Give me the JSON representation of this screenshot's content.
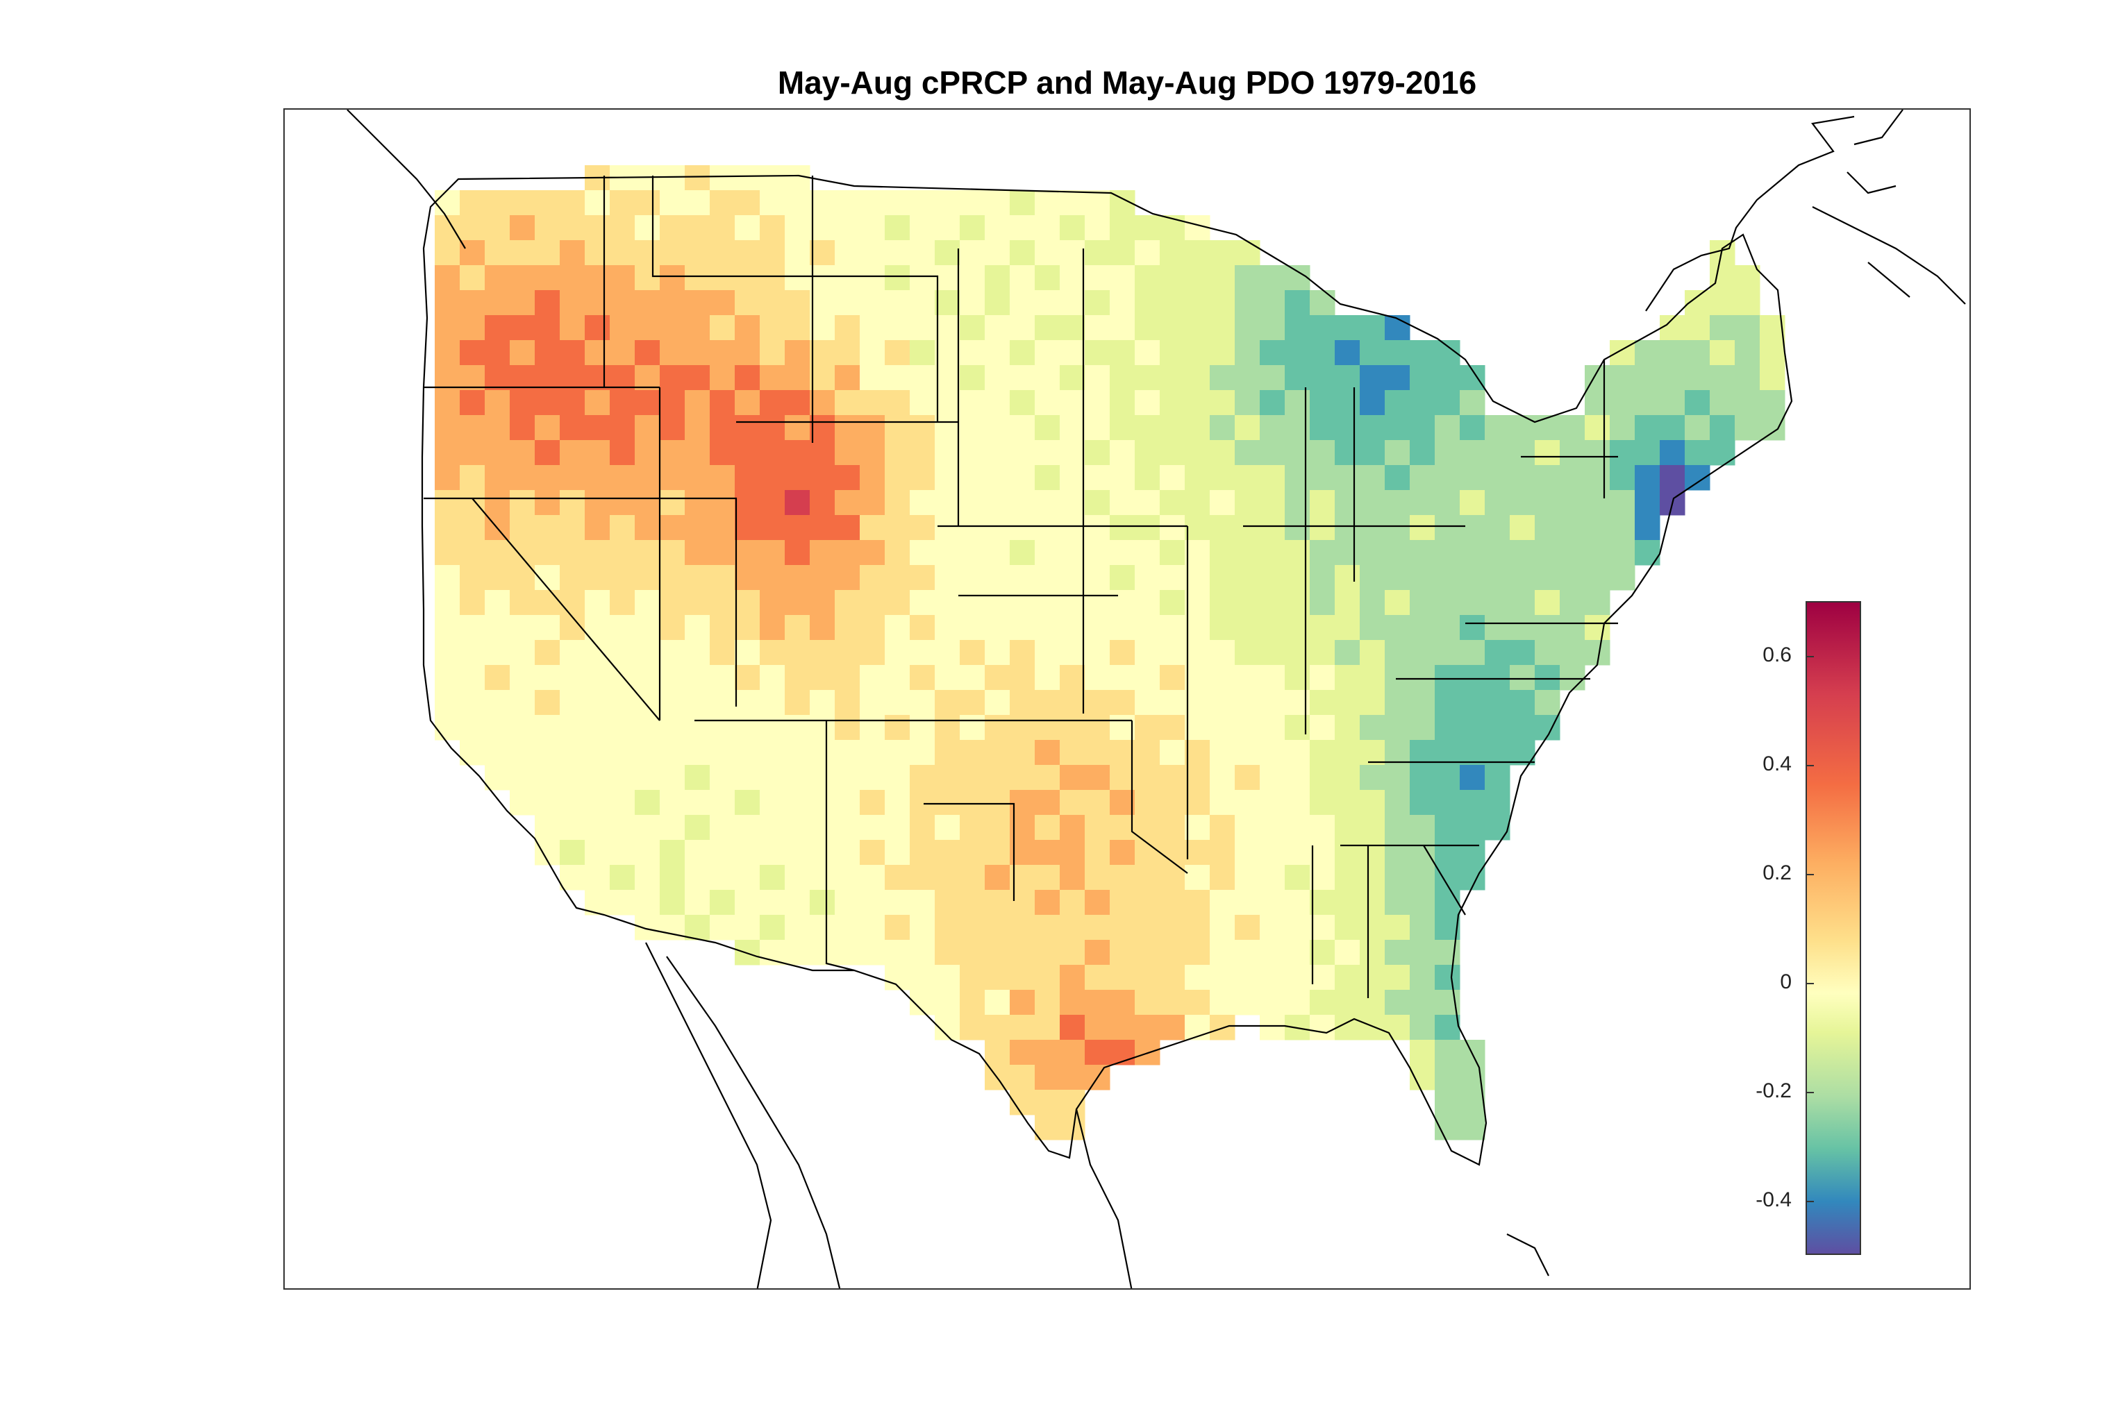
{
  "title": "May-Aug cPRCP and May-Aug PDO 1979-2016",
  "colorbar": {
    "ticks": [
      "0.6",
      "0.4",
      "0.2",
      "0",
      "-0.2",
      "-0.4"
    ],
    "tick_values": [
      0.6,
      0.4,
      0.2,
      0,
      -0.2,
      -0.4
    ],
    "range": [
      -0.5,
      0.7
    ],
    "colormap": [
      "#5e4fa2",
      "#3288bd",
      "#66c2a5",
      "#abdda4",
      "#e6f598",
      "#ffffbf",
      "#fee08b",
      "#fdae61",
      "#f46d43",
      "#d53e4f",
      "#9e0142"
    ]
  },
  "map": {
    "region": "contiguous United States",
    "outline_color": "#000000",
    "regional_correlation": [
      {
        "region": "Pacific Northwest coast",
        "value": 0.35
      },
      {
        "region": "Idaho / western Montana",
        "value": 0.4
      },
      {
        "region": "Wyoming / Utah",
        "value": 0.45
      },
      {
        "region": "Nevada / California interior",
        "value": 0.15
      },
      {
        "region": "Arizona / New Mexico",
        "value": 0.05
      },
      {
        "region": "Southern Plains / Texas",
        "value": 0.3
      },
      {
        "region": "South Texas coast",
        "value": 0.45
      },
      {
        "region": "Northern Plains",
        "value": 0.05
      },
      {
        "region": "Upper Great Lakes",
        "value": -0.3
      },
      {
        "region": "Ohio Valley",
        "value": 0.0
      },
      {
        "region": "Mid-Atlantic / Appalachians",
        "value": -0.25
      },
      {
        "region": "Southeast coast",
        "value": -0.3
      },
      {
        "region": "Florida",
        "value": -0.3
      },
      {
        "region": "New England",
        "value": -0.2
      },
      {
        "region": "Southern New England / NYC",
        "value": -0.5
      }
    ]
  }
}
